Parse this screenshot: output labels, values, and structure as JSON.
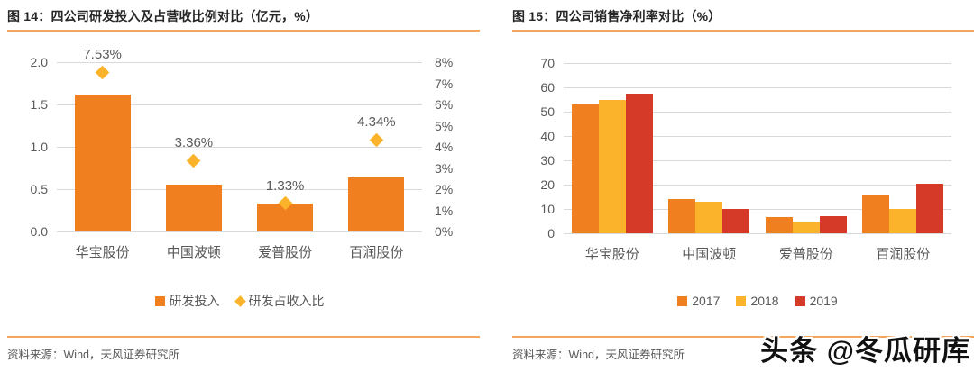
{
  "page": {
    "watermark": "头条 @冬瓜研库"
  },
  "panels": [
    {
      "title": "图 14：四公司研发投入及占营收比例对比（亿元，%）",
      "source": "资料来源：Wind，天风证券研究所"
    },
    {
      "title": "图 15：四公司销售净利率对比（%）",
      "source": "资料来源：Wind，天风证券研究所"
    }
  ],
  "colors": {
    "bar_orange": "#F0801F",
    "diamond_yellow": "#FBB32B",
    "red_2019": "#D53A28",
    "gridline": "#D9D9D9",
    "axis_text": "#595959",
    "rule_orange": "#F4A65D"
  },
  "chart_data": [
    {
      "type": "bar",
      "title": "四公司研发投入及占营收比例对比（亿元，%）",
      "categories": [
        "华宝股份",
        "中国波顿",
        "爱普股份",
        "百润股份"
      ],
      "series": [
        {
          "name": "研发投入",
          "type": "bar",
          "axis": "left",
          "color": "#F0801F",
          "values": [
            1.62,
            0.55,
            0.33,
            0.64
          ]
        },
        {
          "name": "研发占收入比",
          "type": "scatter-diamond",
          "axis": "right",
          "color": "#FBB32B",
          "values": [
            7.53,
            3.36,
            1.33,
            4.34
          ],
          "point_labels": [
            "7.53%",
            "3.36%",
            "1.33%",
            "4.34%"
          ]
        }
      ],
      "left_axis": {
        "min": 0,
        "max": 2,
        "tick_values": [
          2,
          1.5,
          1,
          0.5,
          0
        ],
        "tick_labels": [
          "2.0",
          "1.5",
          "1.0",
          "0.5",
          "0.0"
        ]
      },
      "right_axis": {
        "min": 0,
        "max": 8,
        "tick_values": [
          8,
          7,
          6,
          5,
          4,
          3,
          2,
          1,
          0
        ],
        "tick_labels": [
          "8%",
          "7%",
          "6%",
          "5%",
          "4%",
          "3%",
          "2%",
          "1%",
          "0%"
        ]
      },
      "grid": "horizontal",
      "legend_position": "bottom"
    },
    {
      "type": "bar",
      "title": "四公司销售净利率对比（%）",
      "categories": [
        "华宝股份",
        "中国波顿",
        "爱普股份",
        "百润股份"
      ],
      "series": [
        {
          "name": "2017",
          "type": "bar",
          "axis": "left",
          "color": "#F0801F",
          "values": [
            52.9,
            14.2,
            6.8,
            16.0
          ]
        },
        {
          "name": "2018",
          "type": "bar",
          "axis": "left",
          "color": "#FBB32B",
          "values": [
            54.8,
            12.8,
            5.0,
            10.1
          ]
        },
        {
          "name": "2019",
          "type": "bar",
          "axis": "left",
          "color": "#D53A28",
          "values": [
            57.3,
            10.0,
            7.0,
            20.4
          ]
        }
      ],
      "left_axis": {
        "min": 0,
        "max": 70,
        "tick_values": [
          70,
          60,
          50,
          40,
          30,
          20,
          10,
          0
        ],
        "tick_labels": [
          "70",
          "60",
          "50",
          "40",
          "30",
          "20",
          "10",
          "0"
        ]
      },
      "grid": "horizontal",
      "legend_position": "bottom"
    }
  ]
}
